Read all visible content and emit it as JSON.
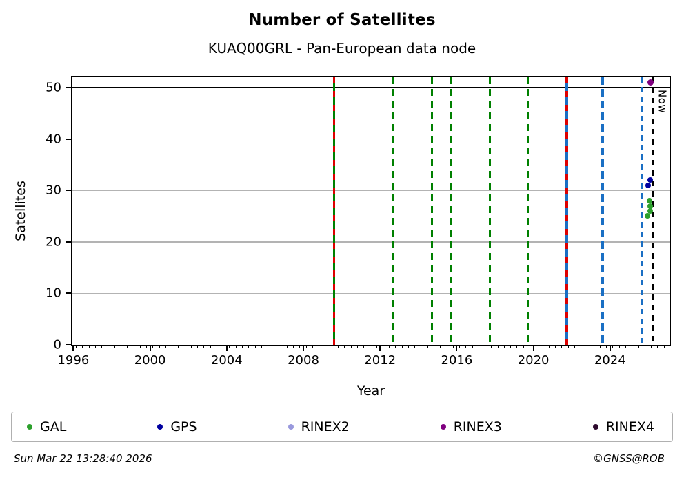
{
  "title": "Number of Satellites",
  "subtitle": "KUAQ00GRL - Pan-European data node",
  "footer": {
    "timestamp": "Sun Mar 22 13:28:40 2026",
    "credit": "©GNSS@ROB"
  },
  "chart_data": {
    "type": "scatter",
    "title": "Number of Satellites",
    "subtitle": "KUAQ00GRL - Pan-European data node",
    "xlabel": "Year",
    "ylabel": "Satellites",
    "xlim": [
      1995.95,
      2027.1
    ],
    "ylim": [
      0,
      52
    ],
    "xticks": [
      1996,
      2000,
      2004,
      2008,
      2012,
      2016,
      2020,
      2024
    ],
    "x_minor_interval": 0.3333,
    "yticks": [
      0,
      10,
      20,
      30,
      40,
      50
    ],
    "gridlines_y": [
      10,
      20,
      30,
      40
    ],
    "grid_color": "#b3b3b3",
    "reference_hline": {
      "y": 50,
      "color": "#000000",
      "width": 2
    },
    "event_lines": [
      {
        "x": 2009.6,
        "color": "#008000",
        "width": 3,
        "style": "solid",
        "overlay": "#dd0000"
      },
      {
        "x": 2012.7,
        "color": "#008000",
        "width": 3,
        "style": "dashed",
        "dash": [
          10,
          7
        ]
      },
      {
        "x": 2014.72,
        "color": "#008000",
        "width": 3,
        "style": "dashed",
        "dash": [
          10,
          7
        ]
      },
      {
        "x": 2015.72,
        "color": "#008000",
        "width": 3,
        "style": "dashed",
        "dash": [
          10,
          7
        ]
      },
      {
        "x": 2017.72,
        "color": "#008000",
        "width": 3,
        "style": "dashed",
        "dash": [
          10,
          7
        ]
      },
      {
        "x": 2019.72,
        "color": "#008000",
        "width": 3,
        "style": "dashed",
        "dash": [
          10,
          7
        ]
      },
      {
        "x": 2021.75,
        "color": "#1a6fc4",
        "width": 4,
        "style": "solid",
        "overlay": "#dd0000"
      },
      {
        "x": 2023.6,
        "color": "#1a6fc4",
        "width": 5,
        "style": "dashed",
        "dash": [
          11,
          6
        ]
      },
      {
        "x": 2025.65,
        "color": "#1a6fc4",
        "width": 3,
        "style": "dashed",
        "dash": [
          8,
          6
        ]
      },
      {
        "x": 2026.22,
        "color": "#000000",
        "width": 2,
        "style": "dashed",
        "dash": [
          8,
          7
        ],
        "label": "Now"
      }
    ],
    "series": [
      {
        "name": "GAL",
        "color": "#2ca02c",
        "marker_size": 8,
        "points": [
          [
            2025.95,
            25
          ],
          [
            2026.1,
            26
          ],
          [
            2026.08,
            27
          ],
          [
            2026.05,
            28
          ]
        ]
      },
      {
        "name": "GPS",
        "color": "#0000a0",
        "marker_size": 8,
        "points": [
          [
            2026.0,
            31
          ],
          [
            2026.08,
            32
          ]
        ]
      },
      {
        "name": "RINEX2",
        "color": "#9999dd",
        "marker_size": 8,
        "points": []
      },
      {
        "name": "RINEX3",
        "color": "#800080",
        "marker_size": 9,
        "points": [
          [
            2026.1,
            51
          ]
        ]
      },
      {
        "name": "RINEX4",
        "color": "#2e0a2e",
        "marker_size": 8,
        "points": []
      }
    ],
    "legend_position": "bottom"
  }
}
